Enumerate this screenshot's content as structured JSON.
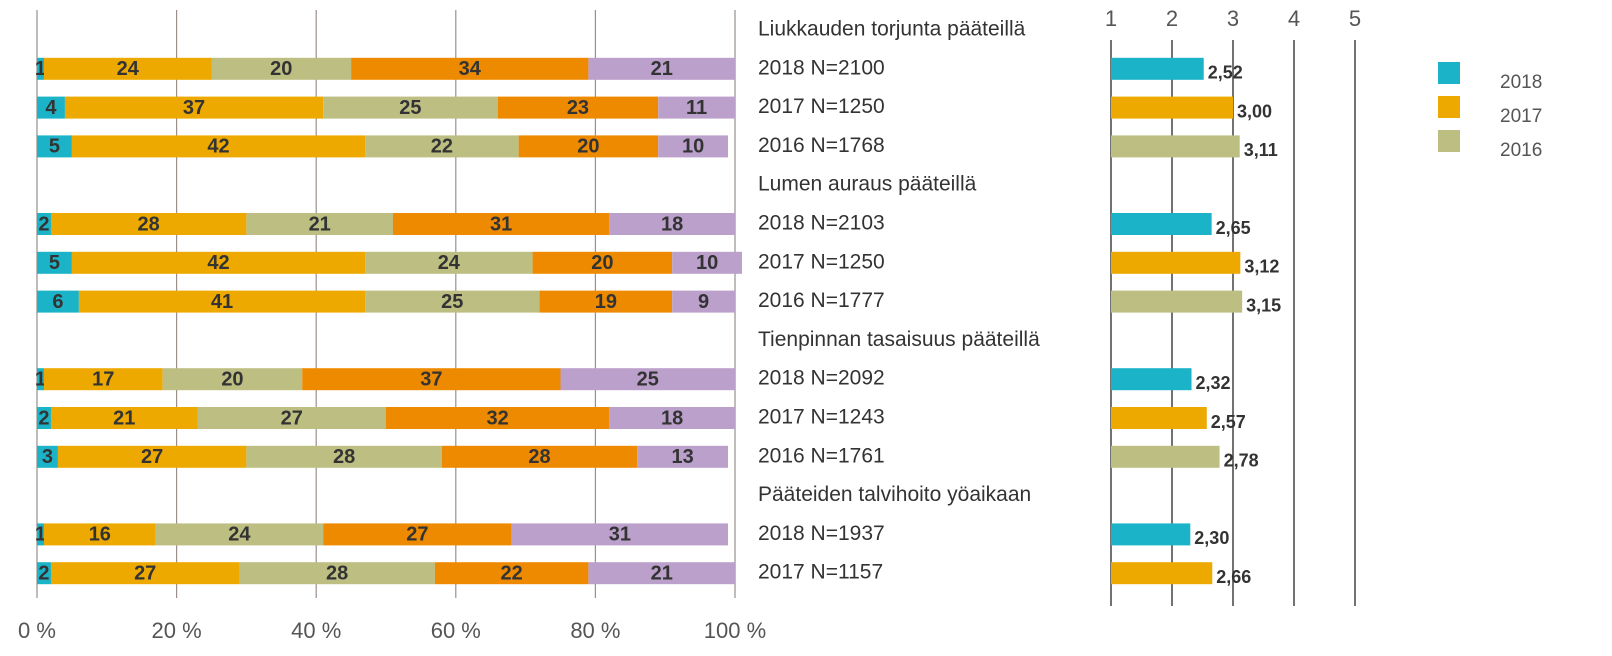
{
  "chart_data": [
    {
      "type": "stacked_bar",
      "groups": [
        {
          "title": "Liukkauden torjunta pääteillä",
          "categories": [
            "2018 N=2100",
            "2017 N=1250",
            "2016 N=1768"
          ]
        },
        {
          "title": "Lumen auraus pääteillä",
          "categories": [
            "2018 N=2103",
            "2017 N=1250",
            "2016 N=1777"
          ]
        },
        {
          "title": "Tienpinnan tasaisuus pääteillä",
          "categories": [
            "2018 N=2092",
            "2017 N=1243",
            "2016 N=1761"
          ]
        },
        {
          "title": "Pääteiden talvihoito yöaikaan",
          "categories": [
            "2018 N=1937",
            "2017 N=1157"
          ]
        }
      ],
      "series": [
        {
          "color": "#1bb3c8",
          "values": [
            1,
            4,
            5,
            2,
            5,
            6,
            1,
            2,
            3,
            1,
            2
          ]
        },
        {
          "color": "#eda900",
          "values": [
            24,
            37,
            42,
            28,
            42,
            41,
            17,
            21,
            27,
            16,
            27
          ]
        },
        {
          "color": "#bdbe82",
          "values": [
            20,
            25,
            22,
            21,
            24,
            25,
            20,
            27,
            28,
            24,
            28
          ]
        },
        {
          "color": "#ee8a00",
          "values": [
            34,
            23,
            20,
            31,
            20,
            19,
            37,
            32,
            28,
            27,
            22
          ]
        },
        {
          "color": "#bba0cb",
          "values": [
            21,
            11,
            10,
            18,
            10,
            9,
            25,
            18,
            13,
            31,
            21
          ]
        }
      ],
      "xlim": [
        0,
        100
      ],
      "xticks": [
        {
          "value": 0,
          "label": "0 %"
        },
        {
          "value": 20,
          "label": "20 %"
        },
        {
          "value": 40,
          "label": "40 %"
        },
        {
          "value": 60,
          "label": "60 %"
        },
        {
          "value": 80,
          "label": "80 %"
        },
        {
          "value": 100,
          "label": "100 %"
        }
      ],
      "grid": true
    },
    {
      "type": "bar",
      "series": [
        {
          "name": "2018",
          "color": "#1bb3c8",
          "values": [
            2.52,
            null,
            null,
            2.65,
            null,
            null,
            2.32,
            null,
            null,
            2.3,
            null
          ],
          "value_labels": [
            "2,52",
            null,
            null,
            "2,65",
            null,
            null,
            "2,32",
            null,
            null,
            "2,30",
            null
          ]
        },
        {
          "name": "2017",
          "color": "#eda900",
          "values": [
            null,
            3.0,
            null,
            null,
            3.12,
            null,
            null,
            2.57,
            null,
            null,
            2.66
          ],
          "value_labels": [
            null,
            "3,00",
            null,
            null,
            "3,12",
            null,
            null,
            "2,57",
            null,
            null,
            "2,66"
          ]
        },
        {
          "name": "2016",
          "color": "#bdbe82",
          "values": [
            null,
            null,
            3.11,
            null,
            null,
            3.15,
            null,
            null,
            2.78,
            null,
            null
          ],
          "value_labels": [
            null,
            null,
            "3,11",
            null,
            null,
            "3,15",
            null,
            null,
            "2,78",
            null,
            null
          ]
        }
      ],
      "xlim": [
        1,
        5
      ],
      "xticks": [
        1,
        2,
        3,
        4,
        5
      ],
      "grid": true,
      "legend": "right"
    }
  ]
}
